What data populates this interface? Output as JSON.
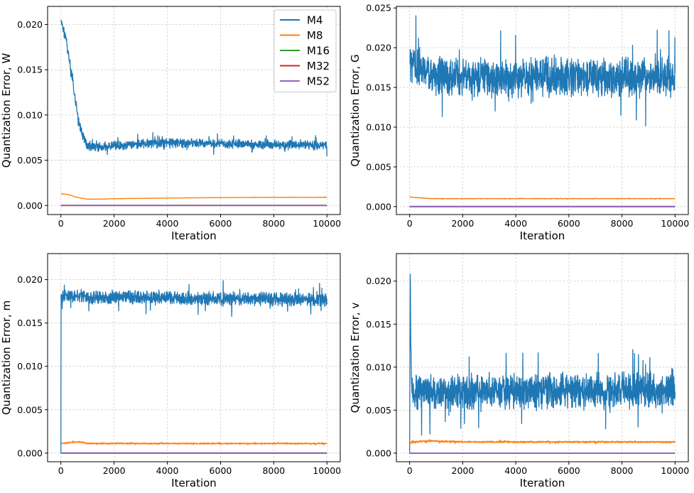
{
  "figure": {
    "legend": {
      "placement": "top-right of top-left panel",
      "entries": [
        {
          "name": "M4",
          "color": "#1f77b4"
        },
        {
          "name": "M8",
          "color": "#ff7f0e"
        },
        {
          "name": "M16",
          "color": "#2ca02c"
        },
        {
          "name": "M32",
          "color": "#d62728"
        },
        {
          "name": "M52",
          "color": "#9467bd"
        }
      ]
    }
  },
  "chart_data": [
    {
      "type": "line",
      "panel": "top-left",
      "xlabel": "Iteration",
      "ylabel": "Quantization Error, W",
      "xlim": [
        -500,
        10500
      ],
      "ylim": [
        -0.001,
        0.022
      ],
      "xticks": [
        0,
        2000,
        4000,
        6000,
        8000,
        10000
      ],
      "xtick_labels": [
        "0",
        "2000",
        "4000",
        "6000",
        "8000",
        "10000"
      ],
      "yticks": [
        0.0,
        0.005,
        0.01,
        0.015,
        0.02
      ],
      "ytick_labels": [
        "0.000",
        "0.005",
        "0.010",
        "0.015",
        "0.020"
      ],
      "grid": true,
      "series": [
        {
          "name": "M4",
          "color": "#1f77b4",
          "noise": 0.0006,
          "x": [
            0,
            100,
            200,
            300,
            400,
            500,
            600,
            700,
            800,
            900,
            1000,
            1200,
            1500,
            2000,
            3000,
            4000,
            5000,
            6000,
            7000,
            8000,
            9000,
            10000
          ],
          "y": [
            0.0205,
            0.0195,
            0.0182,
            0.0165,
            0.0145,
            0.0125,
            0.0105,
            0.009,
            0.0078,
            0.0071,
            0.0067,
            0.0065,
            0.0065,
            0.0066,
            0.0068,
            0.0069,
            0.0069,
            0.0068,
            0.0068,
            0.0067,
            0.0067,
            0.0067
          ]
        },
        {
          "name": "M8",
          "color": "#ff7f0e",
          "noise": 2e-05,
          "x": [
            0,
            300,
            600,
            1000,
            1500,
            2000,
            4000,
            6000,
            8000,
            10000
          ],
          "y": [
            0.0013,
            0.0012,
            0.0009,
            0.0007,
            0.0007,
            0.00075,
            0.00082,
            0.00087,
            0.0009,
            0.0009
          ]
        },
        {
          "name": "M16",
          "color": "#2ca02c",
          "noise": 0,
          "x": [
            0,
            10000
          ],
          "y": [
            1e-05,
            1e-05
          ]
        },
        {
          "name": "M32",
          "color": "#d62728",
          "noise": 0,
          "x": [
            0,
            10000
          ],
          "y": [
            0.0,
            0.0
          ]
        },
        {
          "name": "M52",
          "color": "#9467bd",
          "noise": 0,
          "x": [
            0,
            10000
          ],
          "y": [
            0.0,
            0.0
          ]
        }
      ]
    },
    {
      "type": "line",
      "panel": "top-right",
      "xlabel": "Iteration",
      "ylabel": "Quantization Error, G",
      "xlim": [
        -500,
        10500
      ],
      "ylim": [
        -0.001,
        0.0252
      ],
      "xticks": [
        0,
        2000,
        4000,
        6000,
        8000,
        10000
      ],
      "xtick_labels": [
        "0",
        "2000",
        "4000",
        "6000",
        "8000",
        "10000"
      ],
      "yticks": [
        0.0,
        0.005,
        0.01,
        0.015,
        0.02,
        0.025
      ],
      "ytick_labels": [
        "0.000",
        "0.005",
        "0.010",
        "0.015",
        "0.020",
        "0.025"
      ],
      "grid": true,
      "series": [
        {
          "name": "M4",
          "color": "#1f77b4",
          "noise": 0.0028,
          "x": [
            0,
            300,
            600,
            1000,
            3000,
            6000,
            10000
          ],
          "y": [
            0.018,
            0.0175,
            0.0168,
            0.0165,
            0.0163,
            0.0163,
            0.0162
          ]
        },
        {
          "name": "M8",
          "color": "#ff7f0e",
          "noise": 4e-05,
          "x": [
            0,
            400,
            800,
            2000,
            10000
          ],
          "y": [
            0.0012,
            0.0011,
            0.001,
            0.001,
            0.001
          ]
        },
        {
          "name": "M16",
          "color": "#2ca02c",
          "noise": 0,
          "x": [
            0,
            10000
          ],
          "y": [
            0.0,
            0.0
          ]
        },
        {
          "name": "M32",
          "color": "#d62728",
          "noise": 0,
          "x": [
            0,
            10000
          ],
          "y": [
            0.0,
            0.0
          ]
        },
        {
          "name": "M52",
          "color": "#9467bd",
          "noise": 0,
          "x": [
            0,
            10000
          ],
          "y": [
            0.0,
            0.0
          ]
        }
      ]
    },
    {
      "type": "line",
      "panel": "bottom-left",
      "xlabel": "Iteration",
      "ylabel": "Quantization Error, m",
      "xlim": [
        -500,
        10500
      ],
      "ylim": [
        -0.001,
        0.023
      ],
      "xticks": [
        0,
        2000,
        4000,
        6000,
        8000,
        10000
      ],
      "xtick_labels": [
        "0",
        "2000",
        "4000",
        "6000",
        "8000",
        "10000"
      ],
      "yticks": [
        0.0,
        0.005,
        0.01,
        0.015,
        0.02
      ],
      "ytick_labels": [
        "0.000",
        "0.005",
        "0.010",
        "0.015",
        "0.020"
      ],
      "grid": true,
      "series": [
        {
          "name": "M4",
          "color": "#1f77b4",
          "noise": 0.0009,
          "x": [
            0,
            5,
            10,
            100,
            1000,
            3000,
            5000,
            7000,
            10000
          ],
          "y": [
            0.0,
            0.0185,
            0.018,
            0.0182,
            0.018,
            0.0179,
            0.0178,
            0.0178,
            0.0177
          ]
        },
        {
          "name": "M8",
          "color": "#ff7f0e",
          "noise": 9e-05,
          "x": [
            0,
            300,
            700,
            1000,
            2000,
            10000
          ],
          "y": [
            0.0011,
            0.0012,
            0.0013,
            0.0011,
            0.0011,
            0.0011
          ]
        },
        {
          "name": "M16",
          "color": "#2ca02c",
          "noise": 0,
          "x": [
            0,
            10000
          ],
          "y": [
            0.0,
            0.0
          ]
        },
        {
          "name": "M32",
          "color": "#d62728",
          "noise": 0,
          "x": [
            0,
            10000
          ],
          "y": [
            0.0,
            0.0
          ]
        },
        {
          "name": "M52",
          "color": "#9467bd",
          "noise": 0,
          "x": [
            0,
            10000
          ],
          "y": [
            0.0,
            0.0
          ]
        }
      ]
    },
    {
      "type": "line",
      "panel": "bottom-right",
      "xlabel": "Iteration",
      "ylabel": "Quantization Error, v",
      "xlim": [
        -500,
        10500
      ],
      "ylim": [
        -0.001,
        0.0232
      ],
      "xticks": [
        0,
        2000,
        4000,
        6000,
        8000,
        10000
      ],
      "xtick_labels": [
        "0",
        "2000",
        "4000",
        "6000",
        "8000",
        "10000"
      ],
      "yticks": [
        0.0,
        0.005,
        0.01,
        0.015,
        0.02
      ],
      "ytick_labels": [
        "0.000",
        "0.005",
        "0.010",
        "0.015",
        "0.020"
      ],
      "grid": true,
      "series": [
        {
          "name": "M4",
          "color": "#1f77b4",
          "noise": 0.0024,
          "x": [
            0,
            20,
            50,
            100,
            200,
            500,
            1000,
            3000,
            5000,
            7000,
            10000
          ],
          "y": [
            0.0,
            0.0215,
            0.012,
            0.007,
            0.007,
            0.0075,
            0.007,
            0.0072,
            0.0073,
            0.0073,
            0.0075
          ]
        },
        {
          "name": "M8",
          "color": "#ff7f0e",
          "noise": 0.00012,
          "x": [
            0,
            200,
            500,
            1000,
            2000,
            5000,
            10000
          ],
          "y": [
            0.0012,
            0.0013,
            0.0014,
            0.0014,
            0.0013,
            0.0013,
            0.0013
          ]
        },
        {
          "name": "M16",
          "color": "#2ca02c",
          "noise": 0,
          "x": [
            0,
            10000
          ],
          "y": [
            0.0,
            0.0
          ]
        },
        {
          "name": "M32",
          "color": "#d62728",
          "noise": 0,
          "x": [
            0,
            10000
          ],
          "y": [
            0.0,
            0.0
          ]
        },
        {
          "name": "M52",
          "color": "#9467bd",
          "noise": 0,
          "x": [
            0,
            10000
          ],
          "y": [
            0.0,
            0.0
          ]
        }
      ]
    }
  ]
}
